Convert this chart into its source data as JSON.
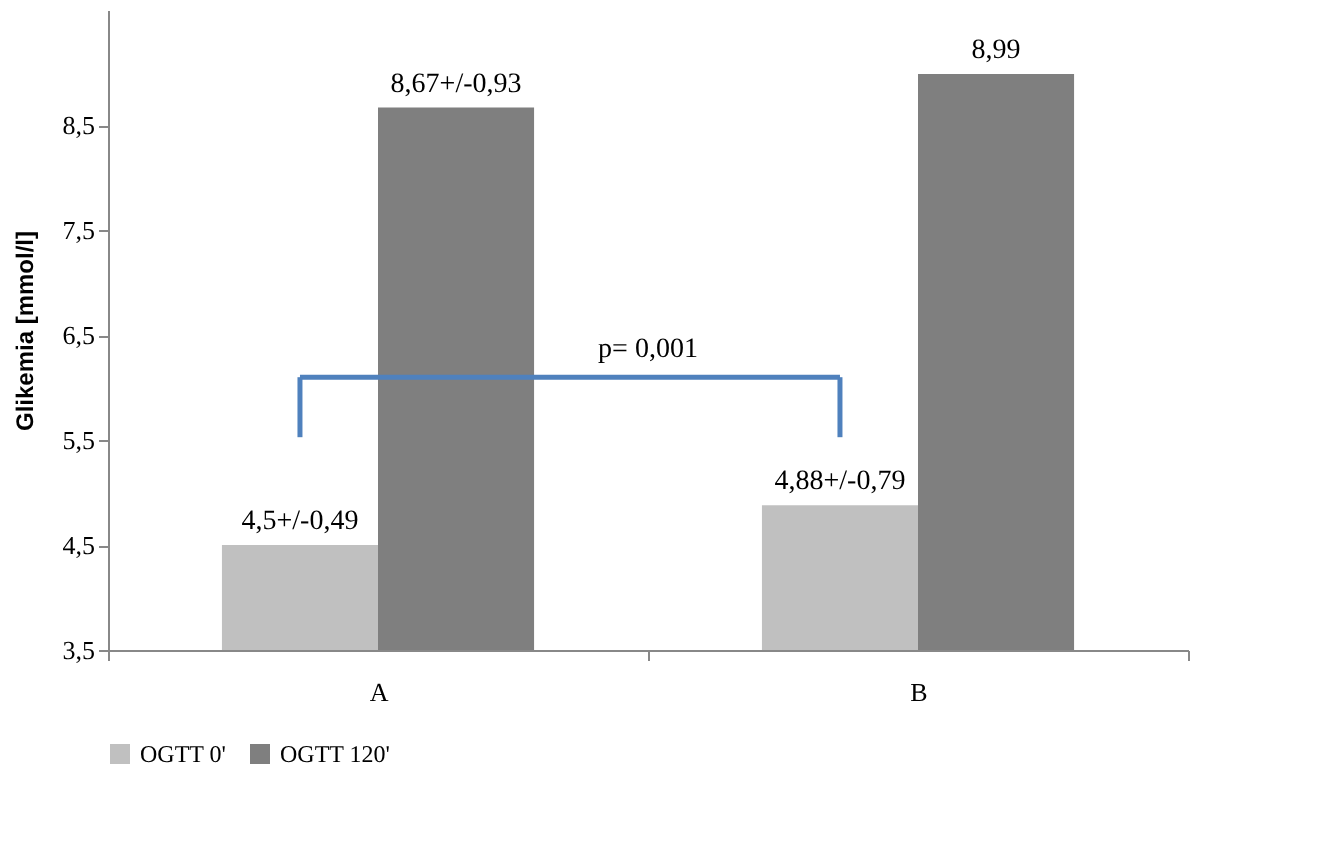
{
  "chart_data": {
    "type": "bar",
    "ylabel": "Glikemia [mmol/l]",
    "categories": [
      "A",
      "B"
    ],
    "series": [
      {
        "name": "OGTT 0'",
        "color": "#c0c0c0",
        "values": [
          4.5,
          4.88
        ],
        "value_labels": [
          "4,5+/-0,49",
          "4,88+/-0,79"
        ]
      },
      {
        "name": "OGTT 120'",
        "color": "#7f7f7f",
        "values": [
          8.67,
          8.99
        ],
        "value_labels": [
          "8,67+/-0,93",
          "8,99"
        ]
      }
    ],
    "ylim": [
      3.5,
      9.6
    ],
    "yticks": [
      {
        "value": 3.5,
        "label": "3,5"
      },
      {
        "value": 4.5,
        "label": "4,5"
      },
      {
        "value": 5.5,
        "label": "5,5"
      },
      {
        "value": 6.5,
        "label": "6,5"
      },
      {
        "value": 7.5,
        "label": "7,5"
      },
      {
        "value": 8.5,
        "label": "8,5"
      }
    ],
    "annotations": [
      "p= 0,001"
    ],
    "legend": "bottom",
    "grid": false
  }
}
